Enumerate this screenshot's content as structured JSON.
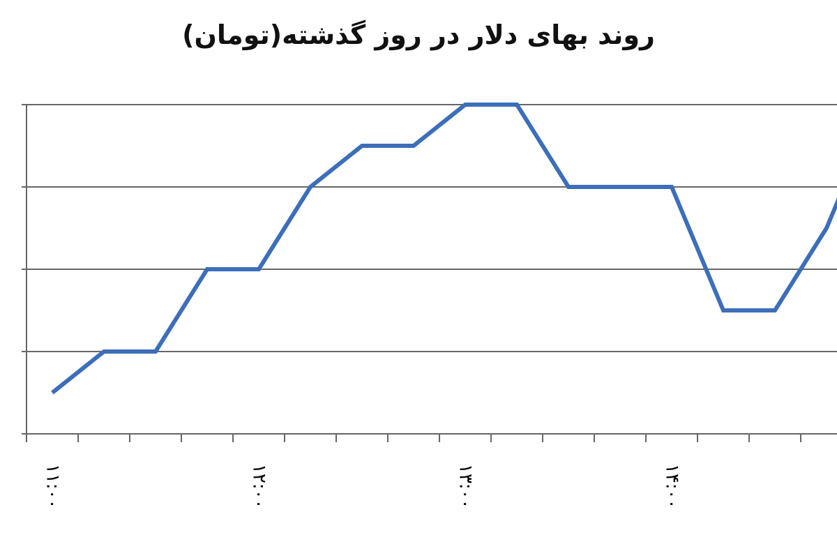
{
  "chart_data": {
    "type": "line",
    "title": "روند بهای دلار در روز گذشته(تومان)",
    "xlabel": "",
    "ylabel": "",
    "x_tick_labels": [
      "۱۱:۰۰",
      "۱۲:۰۰",
      "۱۳:۰۰",
      "۱۴:۰۰"
    ],
    "x_tick_positions": [
      0,
      4,
      8,
      12
    ],
    "x": [
      0,
      1,
      2,
      3,
      4,
      5,
      6,
      7,
      8,
      9,
      10,
      11,
      12,
      13,
      14,
      15,
      16
    ],
    "series": [
      {
        "values": [
          0.5,
          1,
          1,
          2,
          2,
          3,
          3.5,
          3.5,
          4,
          4,
          3,
          3,
          3,
          1.5,
          1.5,
          2.5,
          4
        ]
      }
    ],
    "ylim": [
      0,
      4
    ],
    "y_gridlines": 4,
    "y_tick_labels_visible": false,
    "grid": true,
    "legend": "none",
    "colors": {
      "line": "#3C6EBA",
      "grid": "#666666",
      "axis": "#666666"
    }
  }
}
